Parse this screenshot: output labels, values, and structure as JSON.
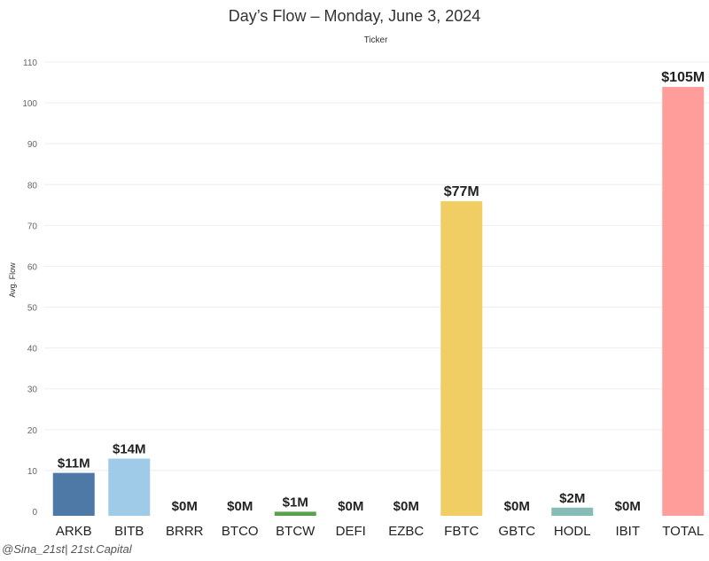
{
  "chart_data": {
    "type": "bar",
    "title": "Day’s Flow – Monday, June 3, 2024",
    "subtitle": "Ticker",
    "ylabel": "Avg. Flow",
    "ylim": [
      0,
      112
    ],
    "yticks": [
      0,
      10,
      20,
      30,
      40,
      50,
      60,
      70,
      80,
      90,
      100,
      110
    ],
    "grid": true,
    "categories": [
      "ARKB",
      "BITB",
      "BRRR",
      "BTCO",
      "BTCW",
      "DEFI",
      "EZBC",
      "FBTC",
      "GBTC",
      "HODL",
      "IBIT",
      "TOTAL"
    ],
    "values": [
      10.5,
      14,
      0,
      0,
      1,
      0,
      0,
      77,
      0,
      2,
      0,
      105
    ],
    "data_labels": [
      "$11M",
      "$14M",
      "$0M",
      "$0M",
      "$1M",
      "$0M",
      "$0M",
      "$77M",
      "$0M",
      "$2M",
      "$0M",
      "$105M"
    ],
    "colors": [
      "#4e79a7",
      "#a0cbe8",
      "#f28e2b",
      "#ffbe7d",
      "#59a14f",
      "#8cd17d",
      "#b6992d",
      "#f1ce63",
      "#499894",
      "#86bcb6",
      "#e15759",
      "#ff9d9a"
    ]
  },
  "watermark": "@Sina_21st| 21st.Capital"
}
